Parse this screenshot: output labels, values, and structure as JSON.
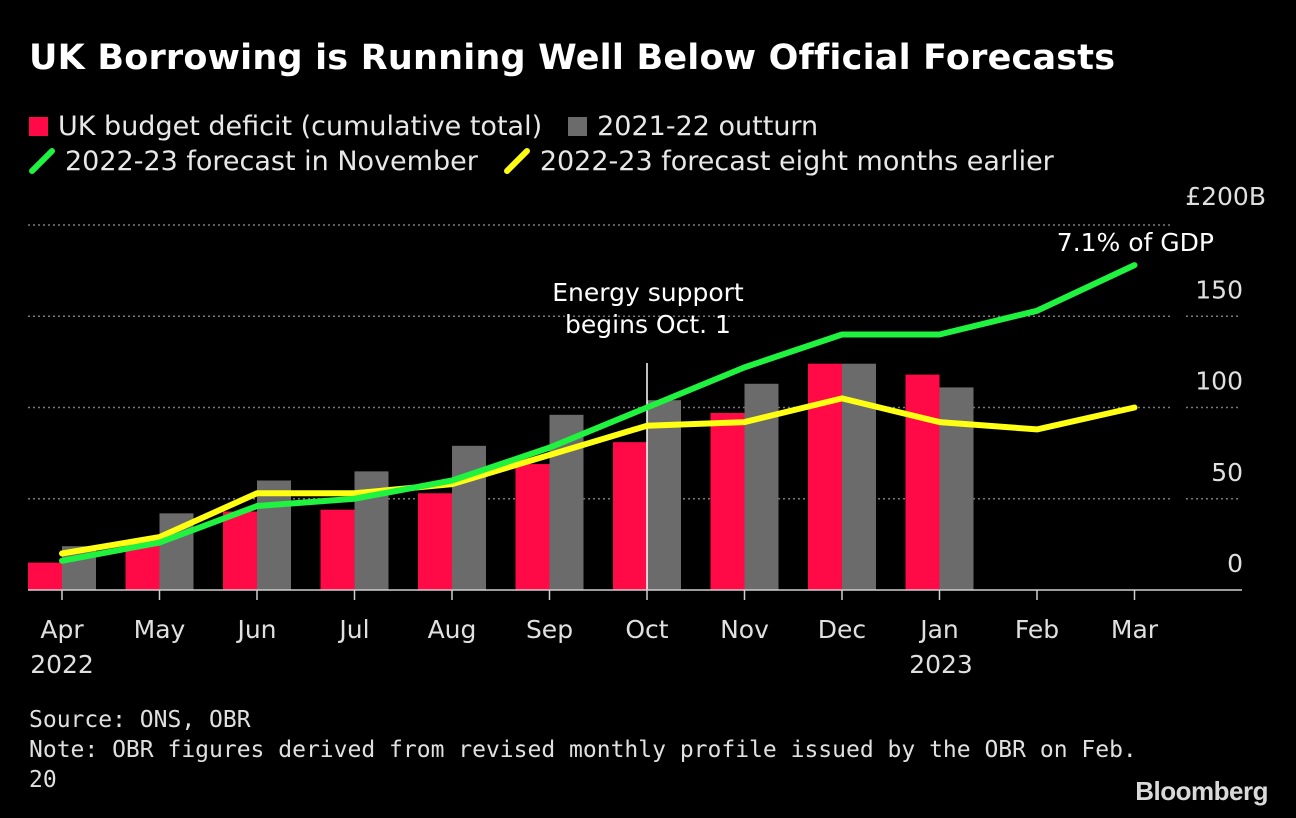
{
  "title": "UK Borrowing is Running Well Below Official Forecasts",
  "legend": {
    "deficit": "UK budget deficit (cumulative total)",
    "outturn": "2021-22 outturn",
    "nov_forecast": "2022-23 forecast in November",
    "earlier_forecast": "2022-23 forecast eight months earlier"
  },
  "colors": {
    "deficit": "#ff0a47",
    "outturn": "#6b6b6b",
    "nov_forecast": "#1ff23f",
    "earlier_forecast": "#ffff14",
    "grid": "#7a7a7a"
  },
  "annotations": {
    "energy_line1": "Energy support",
    "energy_line2": "begins Oct. 1",
    "gdp": "7.1% of GDP"
  },
  "year_labels": {
    "start": "2022",
    "end": "2023"
  },
  "footer": {
    "source": "Source: ONS, OBR",
    "note_line1": "Note: OBR figures derived from revised monthly profile issued by the OBR on Feb.",
    "note_line2": "20"
  },
  "brand": "Bloomberg",
  "chart_data": {
    "type": "bar",
    "categories": [
      "Apr",
      "May",
      "Jun",
      "Jul",
      "Aug",
      "Sep",
      "Oct",
      "Nov",
      "Dec",
      "Jan",
      "Feb",
      "Mar"
    ],
    "ylim": [
      0,
      200
    ],
    "yticks": [
      0,
      50,
      100,
      150,
      200
    ],
    "ytick_labels": [
      "0",
      "50",
      "100",
      "150",
      "£200B"
    ],
    "series": [
      {
        "name": "UK budget deficit (cumulative total)",
        "kind": "bar",
        "values": [
          15,
          26,
          43,
          44,
          53,
          69,
          81,
          97,
          124,
          118,
          null,
          null
        ]
      },
      {
        "name": "2021-22 outturn",
        "kind": "bar",
        "values": [
          24,
          42,
          60,
          65,
          79,
          96,
          104,
          113,
          124,
          111,
          null,
          null
        ]
      },
      {
        "name": "2022-23 forecast in November",
        "kind": "line",
        "values": [
          16,
          26,
          46,
          50,
          60,
          78,
          100,
          122,
          140,
          140,
          153,
          178
        ]
      },
      {
        "name": "2022-23 forecast eight months earlier",
        "kind": "line",
        "values": [
          20,
          29,
          53,
          53,
          58,
          74,
          90,
          92,
          105,
          92,
          88,
          100
        ]
      }
    ],
    "annotation_at": "Oct"
  }
}
